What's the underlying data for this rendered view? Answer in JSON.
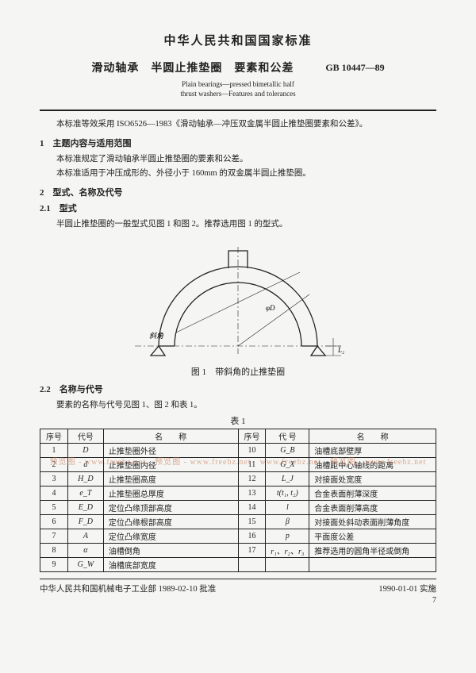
{
  "header": {
    "main_title": "中华人民共和国国家标准",
    "sub_title": "滑动轴承　半圆止推垫圈　要素和公差",
    "gb_code": "GB 10447—89",
    "en_line1": "Plain bearings—pressed bimetallic half",
    "en_line2": "thrust washers—Features and tolerances"
  },
  "intro": "本标准等效采用 ISO6526—1983《滑动轴承—冲压双金属半圆止推垫圈要素和公差》。",
  "s1": {
    "title": "1　主题内容与适用范围",
    "p1": "本标准规定了滑动轴承半圆止推垫圈的要素和公差。",
    "p2": "本标准适用于冲压成形的、外径小于 160mm 的双金属半圆止推垫圈。"
  },
  "s2": {
    "title": "2　型式、名称及代号",
    "s21_title": "2.1　型式",
    "s21_p": "半圆止推垫圈的一般型式见图 1 和图 2。推荐选用图 1 的型式。",
    "fig1_caption": "图 1　带斜角的止推垫圈",
    "s22_title": "2.2　名称与代号",
    "s22_p": "要素的名称与代号见图 1、图 2 和表 1。",
    "table_caption": "表 1"
  },
  "diagram": {
    "label_xijiao": "斜角",
    "label_phiD": "φD",
    "label_L": "L₂"
  },
  "table": {
    "headers": [
      "序号",
      "代号",
      "名　　称",
      "序号",
      "代 号",
      "名　　称"
    ],
    "rows": [
      [
        "1",
        "D",
        "止推垫圈外径",
        "10",
        "G_B",
        "油槽底部壁厚"
      ],
      [
        "2",
        "d",
        "止推垫圈内径",
        "11",
        "G_X",
        "油槽距中心轴线的距离"
      ],
      [
        "3",
        "H_D",
        "止推垫圈高度",
        "12",
        "L_J",
        "对接面处宽度"
      ],
      [
        "4",
        "e_T",
        "止推垫圈总厚度",
        "13",
        "t(t₁, t₂)",
        "合金表面削薄深度"
      ],
      [
        "5",
        "E_D",
        "定位凸缘顶部高度",
        "14",
        "l",
        "合金表面削薄高度"
      ],
      [
        "6",
        "F_D",
        "定位凸缘根部高度",
        "15",
        "β",
        "对接面处斜动表面削薄角度"
      ],
      [
        "7",
        "A",
        "定位凸缘宽度",
        "16",
        "p",
        "平面度公差"
      ],
      [
        "8",
        "α",
        "油槽倒角",
        "17",
        "r₁、r₂、r₃",
        "推荐选用的圆角半径或倒角"
      ],
      [
        "9",
        "G_W",
        "油槽底部宽度",
        "",
        "",
        ""
      ]
    ]
  },
  "footer": {
    "left": "中华人民共和国机械电子工业部 1989-02-10 批准",
    "right": "1990-01-01 实施",
    "page": "7"
  },
  "watermark": "预览图 - www.freebz.net　预览图 - www.freebz.net　www.freebz.net　预览图 - www.freebz.net"
}
